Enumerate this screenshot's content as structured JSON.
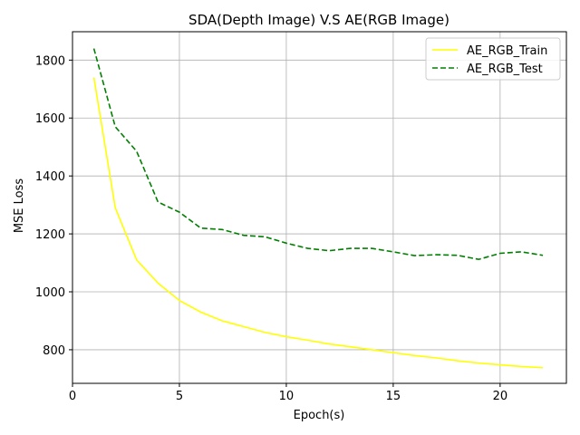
{
  "chart_data": {
    "type": "line",
    "title": "SDA(Depth Image) V.S AE(RGB Image)",
    "xlabel": "Epoch(s)",
    "ylabel": "MSE Loss",
    "xlim": [
      0,
      23.1
    ],
    "ylim": [
      684,
      1898
    ],
    "x_ticks": [
      0,
      5,
      10,
      15,
      20
    ],
    "y_ticks": [
      800,
      1000,
      1200,
      1400,
      1600,
      1800
    ],
    "grid": true,
    "legend_position": "top-right",
    "x": [
      1,
      2,
      3,
      4,
      5,
      6,
      7,
      8,
      9,
      10,
      11,
      12,
      13,
      14,
      15,
      16,
      17,
      18,
      19,
      20,
      21,
      22
    ],
    "series": [
      {
        "name": "AE_RGB_Train",
        "color": "#ffff00",
        "style": "solid",
        "values": [
          1740,
          1290,
          1110,
          1030,
          970,
          930,
          900,
          880,
          860,
          845,
          833,
          820,
          810,
          800,
          790,
          780,
          772,
          762,
          754,
          748,
          742,
          738
        ]
      },
      {
        "name": "AE_RGB_Test",
        "color": "#008000",
        "style": "dashed",
        "values": [
          1840,
          1570,
          1485,
          1310,
          1275,
          1220,
          1215,
          1195,
          1190,
          1168,
          1150,
          1142,
          1150,
          1150,
          1138,
          1125,
          1128,
          1126,
          1112,
          1133,
          1138,
          1126
        ]
      }
    ]
  }
}
